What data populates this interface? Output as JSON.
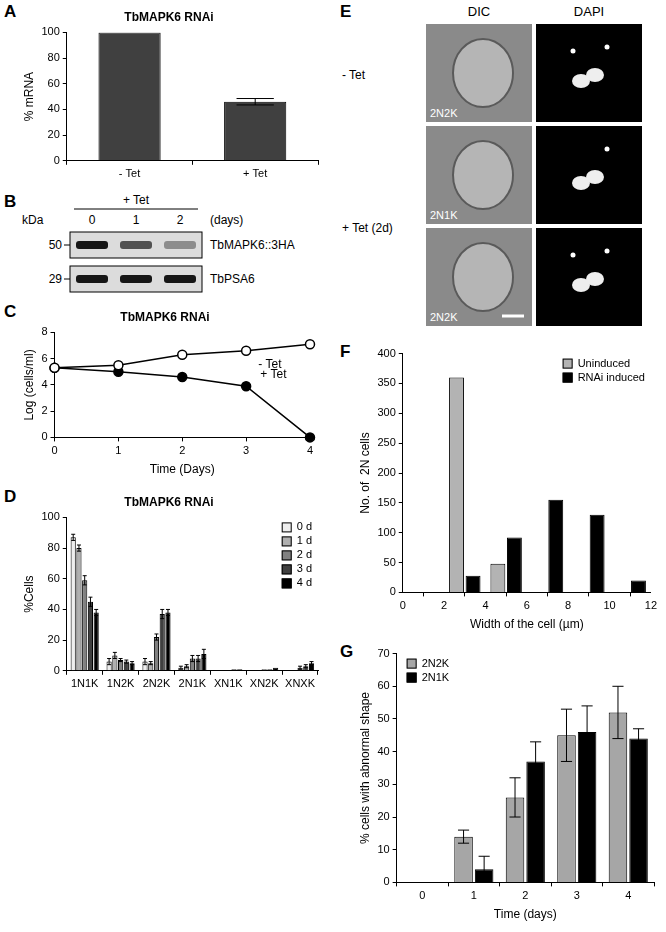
{
  "chart_data": [
    {
      "panel": "A",
      "type": "bar",
      "title": "TbMAPK6 RNAi",
      "y_label": "% mRNA",
      "categories": [
        "- Tet",
        "+ Tet"
      ],
      "values": [
        100,
        46
      ],
      "errors": [
        0,
        2.5
      ],
      "color": "#404040",
      "ylim": [
        0,
        100
      ],
      "yticks": [
        0,
        20,
        40,
        60,
        80,
        100
      ],
      "grid": false
    },
    {
      "panel": "C",
      "type": "line",
      "title": "TbMAPK6 RNAi",
      "x_label": "Time (Days)",
      "y_label": "Log (cells/ml)",
      "x": [
        0,
        1,
        2,
        3,
        4
      ],
      "series": [
        {
          "name": "- Tet",
          "color": "#000000",
          "marker": "open_circle",
          "values": [
            5.3,
            5.5,
            6.3,
            6.6,
            7.1
          ]
        },
        {
          "name": "+ Tet",
          "color": "#000000",
          "marker": "filled_circle",
          "values": [
            5.3,
            5.0,
            4.6,
            3.9,
            0
          ]
        }
      ],
      "xlim": [
        0,
        4
      ],
      "xticks": [
        0,
        1,
        2,
        3,
        4
      ],
      "ylim": [
        0,
        8
      ],
      "yticks": [
        0,
        2,
        4,
        6,
        8
      ],
      "grid": false
    },
    {
      "panel": "D",
      "type": "bar",
      "title": "TbMAPK6 RNAi",
      "y_label": "%Cells",
      "categories": [
        "1N1K",
        "1N2K",
        "2N2K",
        "2N1K",
        "XN1K",
        "XN2K",
        "XNXK"
      ],
      "series": [
        {
          "name": "0 d",
          "color": "#eeeeee",
          "values": [
            87,
            6,
            6,
            2,
            0,
            0,
            0
          ],
          "errors": [
            2,
            2,
            2,
            1,
            0,
            0,
            0
          ]
        },
        {
          "name": "1 d",
          "color": "#b0b0b0",
          "values": [
            80,
            10,
            5,
            3,
            0,
            0,
            0
          ],
          "errors": [
            2,
            2,
            1,
            1,
            0,
            0,
            0
          ]
        },
        {
          "name": "2 d",
          "color": "#808080",
          "values": [
            59,
            7,
            22,
            8,
            0,
            1,
            2
          ],
          "errors": [
            3,
            1,
            2,
            2,
            0,
            0,
            1
          ]
        },
        {
          "name": "3 d",
          "color": "#404040",
          "values": [
            45,
            6,
            37,
            8,
            1,
            1,
            3
          ],
          "errors": [
            3,
            1,
            3,
            2,
            0,
            0,
            1
          ]
        },
        {
          "name": "4 d",
          "color": "#000000",
          "values": [
            38,
            5,
            38,
            11,
            1,
            2,
            5
          ],
          "errors": [
            2,
            1,
            2,
            3,
            0,
            0,
            1
          ]
        }
      ],
      "ylim": [
        0,
        100
      ],
      "yticks": [
        0,
        20,
        40,
        60,
        80,
        100
      ],
      "grid": false,
      "legend": "top-right"
    },
    {
      "panel": "F",
      "type": "bar",
      "x_label": "Width of the cell (µm)",
      "y_label": "No. of  2N cells",
      "x": [
        3,
        5,
        7,
        9,
        11
      ],
      "series": [
        {
          "name": "Uninduced",
          "color": "#b3b3b3",
          "values": [
            360,
            48,
            0,
            0,
            0
          ]
        },
        {
          "name": "RNAi induced",
          "color": "#000000",
          "values": [
            28,
            92,
            155,
            130,
            20
          ]
        }
      ],
      "xlim": [
        0,
        12
      ],
      "xticks": [
        0,
        2,
        4,
        6,
        8,
        10,
        12
      ],
      "ylim": [
        0,
        400
      ],
      "yticks": [
        0,
        50,
        100,
        150,
        200,
        250,
        300,
        350,
        400
      ],
      "grid": false,
      "legend": "top-right"
    },
    {
      "panel": "G",
      "type": "bar",
      "x_label": "Time (days)",
      "y_label": "% cells with abnormal shape",
      "categories": [
        "0",
        "1",
        "2",
        "3",
        "4"
      ],
      "series": [
        {
          "name": "2N2K",
          "color": "#a6a6a6",
          "values": [
            0,
            14,
            26,
            45,
            52
          ],
          "errors": [
            0,
            2,
            6,
            8,
            8
          ]
        },
        {
          "name": "2N1K",
          "color": "#000000",
          "values": [
            0,
            4,
            37,
            46,
            44
          ],
          "errors": [
            0,
            4,
            6,
            8,
            3
          ]
        }
      ],
      "ylim": [
        0,
        70
      ],
      "yticks": [
        0,
        10,
        20,
        30,
        40,
        50,
        60,
        70
      ],
      "grid": false,
      "legend": "top-left"
    }
  ],
  "blot": {
    "panel": "B",
    "header": "+ Tet",
    "lanes": [
      "0",
      "1",
      "2"
    ],
    "lane_unit": "(days)",
    "mw_unit": "kDa",
    "rows": [
      {
        "mw": "50",
        "label": "TbMAPK6::3HA",
        "relative_intensity": [
          1,
          0.7,
          0.4
        ]
      },
      {
        "mw": "29",
        "label": "TbPSA6",
        "relative_intensity": [
          1,
          1,
          1
        ]
      }
    ]
  },
  "micrographs": {
    "panel": "E",
    "columns": [
      "DIC",
      "DAPI"
    ],
    "groups": [
      {
        "condition": "- Tet",
        "cells": [
          {
            "label": "2N2K",
            "nuclei": 2,
            "kinetoplasts": 2
          }
        ]
      },
      {
        "condition": "+ Tet (2d)",
        "cells": [
          {
            "label": "2N1K",
            "nuclei": 2,
            "kinetoplasts": 1
          },
          {
            "label": "2N2K",
            "nuclei": 2,
            "kinetoplasts": 2
          }
        ]
      }
    ]
  }
}
